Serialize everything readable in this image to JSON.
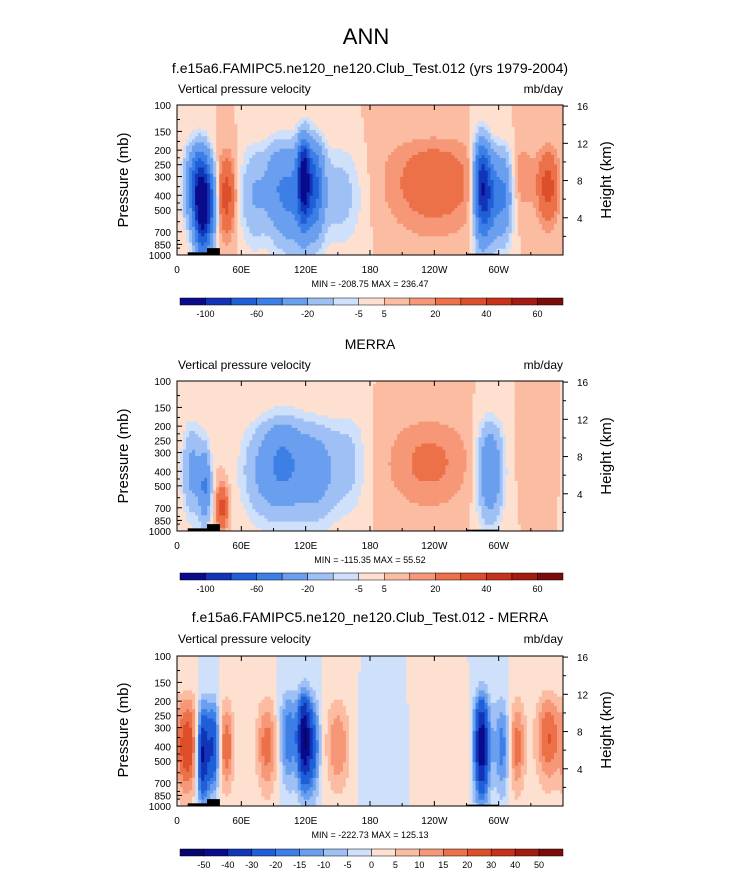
{
  "main_title": "ANN",
  "colors": {
    "neg": [
      "#0a0a8c",
      "#1235b8",
      "#1f5fd8",
      "#3c7fe6",
      "#6a9ff0",
      "#9fc0f5",
      "#cfe0fb"
    ],
    "pos": [
      "#fde0d0",
      "#fbbca2",
      "#f69777",
      "#ec7048",
      "#dd4f2a",
      "#c8321a",
      "#a41b10",
      "#7b0c0c"
    ],
    "land": "#000000"
  },
  "chart_data": [
    {
      "type": "heatmap",
      "title": "f.e15a6.FAMIPC5.ne120_ne120.Club_Test.012 (yrs 1979-2004)",
      "left_label": "Vertical pressure velocity",
      "units": "mb/day",
      "ylabel": "Pressure (mb)",
      "y2label": "Height (km)",
      "pressure_ticks": [
        100,
        150,
        200,
        250,
        300,
        400,
        500,
        700,
        850,
        1000
      ],
      "height_ticks": [
        4,
        8,
        12,
        16
      ],
      "xlim": [
        0,
        360
      ],
      "x_ticks": [
        {
          "lon": 0,
          "label": "0"
        },
        {
          "lon": 60,
          "label": "60E"
        },
        {
          "lon": 120,
          "label": "120E"
        },
        {
          "lon": 180,
          "label": "180"
        },
        {
          "lon": 240,
          "label": "120W"
        },
        {
          "lon": 300,
          "label": "60W"
        }
      ],
      "min_max": "MIN = -208.75   MAX = 236.47",
      "colorbar_labels": [
        "-100",
        "-60",
        "-20",
        "-5",
        "5",
        "20",
        "40",
        "60"
      ],
      "features": [
        {
          "lon": 18,
          "p": 350,
          "w": 7,
          "h": 1.1,
          "v": -60
        },
        {
          "lon": 24,
          "p": 500,
          "w": 5,
          "h": 1.3,
          "v": -100
        },
        {
          "lon": 32,
          "p": 450,
          "w": 4,
          "h": 1.0,
          "v": -40
        },
        {
          "lon": 46,
          "p": 400,
          "w": 6,
          "h": 1.1,
          "v": 25
        },
        {
          "lon": 72,
          "p": 400,
          "w": 9,
          "h": 1.3,
          "v": -20
        },
        {
          "lon": 92,
          "p": 350,
          "w": 8,
          "h": 1.3,
          "v": -25
        },
        {
          "lon": 108,
          "p": 400,
          "w": 10,
          "h": 1.4,
          "v": -40
        },
        {
          "lon": 118,
          "p": 300,
          "w": 4,
          "h": 1.3,
          "v": -90
        },
        {
          "lon": 128,
          "p": 350,
          "w": 6,
          "h": 1.3,
          "v": -60
        },
        {
          "lon": 150,
          "p": 400,
          "w": 16,
          "h": 1.3,
          "v": -15
        },
        {
          "lon": 240,
          "p": 330,
          "w": 32,
          "h": 1.4,
          "v": 16
        },
        {
          "lon": 284,
          "p": 350,
          "w": 5,
          "h": 1.4,
          "v": -90
        },
        {
          "lon": 292,
          "p": 400,
          "w": 5,
          "h": 1.2,
          "v": -50
        },
        {
          "lon": 304,
          "p": 400,
          "w": 6,
          "h": 1.2,
          "v": -45
        },
        {
          "lon": 322,
          "p": 300,
          "w": 8,
          "h": 1.0,
          "v": 8
        },
        {
          "lon": 346,
          "p": 350,
          "w": 7,
          "h": 1.0,
          "v": 25
        }
      ]
    },
    {
      "type": "heatmap",
      "title": "MERRA",
      "left_label": "Vertical pressure velocity",
      "units": "mb/day",
      "ylabel": "Pressure (mb)",
      "y2label": "Height (km)",
      "pressure_ticks": [
        100,
        150,
        200,
        250,
        300,
        400,
        500,
        700,
        850,
        1000
      ],
      "height_ticks": [
        4,
        8,
        12,
        16
      ],
      "xlim": [
        0,
        360
      ],
      "x_ticks": [
        {
          "lon": 0,
          "label": "0"
        },
        {
          "lon": 60,
          "label": "60E"
        },
        {
          "lon": 120,
          "label": "120E"
        },
        {
          "lon": 180,
          "label": "180"
        },
        {
          "lon": 240,
          "label": "120W"
        },
        {
          "lon": 300,
          "label": "60W"
        }
      ],
      "min_max": "MIN = -115.35   MAX = 55.52",
      "colorbar_labels": [
        "-100",
        "-60",
        "-20",
        "-5",
        "5",
        "20",
        "40",
        "60"
      ],
      "features": [
        {
          "lon": 14,
          "p": 400,
          "w": 6,
          "h": 1.2,
          "v": -25
        },
        {
          "lon": 26,
          "p": 500,
          "w": 4,
          "h": 1.0,
          "v": -40
        },
        {
          "lon": 42,
          "p": 700,
          "w": 4,
          "h": 0.6,
          "v": 25
        },
        {
          "lon": 80,
          "p": 400,
          "w": 14,
          "h": 1.3,
          "v": -20
        },
        {
          "lon": 100,
          "p": 350,
          "w": 12,
          "h": 1.3,
          "v": -35
        },
        {
          "lon": 128,
          "p": 400,
          "w": 14,
          "h": 1.3,
          "v": -30
        },
        {
          "lon": 160,
          "p": 350,
          "w": 12,
          "h": 1.4,
          "v": -12
        },
        {
          "lon": 235,
          "p": 350,
          "w": 28,
          "h": 1.3,
          "v": 12
        },
        {
          "lon": 292,
          "p": 400,
          "w": 8,
          "h": 1.3,
          "v": -40
        },
        {
          "lon": 338,
          "p": 300,
          "w": 10,
          "h": 1.0,
          "v": 4
        }
      ]
    },
    {
      "type": "heatmap",
      "title": "f.e15a6.FAMIPC5.ne120_ne120.Club_Test.012 - MERRA",
      "left_label": "Vertical pressure velocity",
      "units": "mb/day",
      "ylabel": "Pressure (mb)",
      "y2label": "Height (km)",
      "pressure_ticks": [
        100,
        150,
        200,
        250,
        300,
        400,
        500,
        700,
        850,
        1000
      ],
      "height_ticks": [
        4,
        8,
        12,
        16
      ],
      "xlim": [
        0,
        360
      ],
      "x_ticks": [
        {
          "lon": 0,
          "label": "0"
        },
        {
          "lon": 60,
          "label": "60E"
        },
        {
          "lon": 120,
          "label": "120E"
        },
        {
          "lon": 180,
          "label": "180"
        },
        {
          "lon": 240,
          "label": "120W"
        },
        {
          "lon": 300,
          "label": "60W"
        }
      ],
      "min_max": "MIN = -222.73   MAX = 125.13",
      "colorbar_labels": [
        "-50",
        "-40",
        "-30",
        "-20",
        "-15",
        "-10",
        "-5",
        "0",
        "5",
        "10",
        "15",
        "20",
        "30",
        "40",
        "50"
      ],
      "features": [
        {
          "lon": 10,
          "p": 400,
          "w": 8,
          "h": 1.4,
          "v": 25
        },
        {
          "lon": 24,
          "p": 450,
          "w": 4,
          "h": 1.3,
          "v": -45
        },
        {
          "lon": 34,
          "p": 400,
          "w": 4,
          "h": 1.2,
          "v": -30
        },
        {
          "lon": 46,
          "p": 400,
          "w": 5,
          "h": 1.2,
          "v": 20
        },
        {
          "lon": 84,
          "p": 400,
          "w": 7,
          "h": 1.3,
          "v": 18
        },
        {
          "lon": 104,
          "p": 350,
          "w": 6,
          "h": 1.3,
          "v": -20
        },
        {
          "lon": 118,
          "p": 350,
          "w": 4,
          "h": 1.3,
          "v": -45
        },
        {
          "lon": 126,
          "p": 400,
          "w": 5,
          "h": 1.3,
          "v": -25
        },
        {
          "lon": 150,
          "p": 400,
          "w": 8,
          "h": 1.3,
          "v": 15
        },
        {
          "lon": 190,
          "p": 450,
          "w": 14,
          "h": 1.3,
          "v": -3
        },
        {
          "lon": 255,
          "p": 400,
          "w": 18,
          "h": 1.3,
          "v": 5
        },
        {
          "lon": 284,
          "p": 400,
          "w": 5,
          "h": 1.4,
          "v": -50
        },
        {
          "lon": 304,
          "p": 400,
          "w": 6,
          "h": 1.3,
          "v": -20
        },
        {
          "lon": 316,
          "p": 400,
          "w": 6,
          "h": 1.3,
          "v": 20
        },
        {
          "lon": 346,
          "p": 350,
          "w": 8,
          "h": 1.3,
          "v": 20
        }
      ]
    }
  ]
}
